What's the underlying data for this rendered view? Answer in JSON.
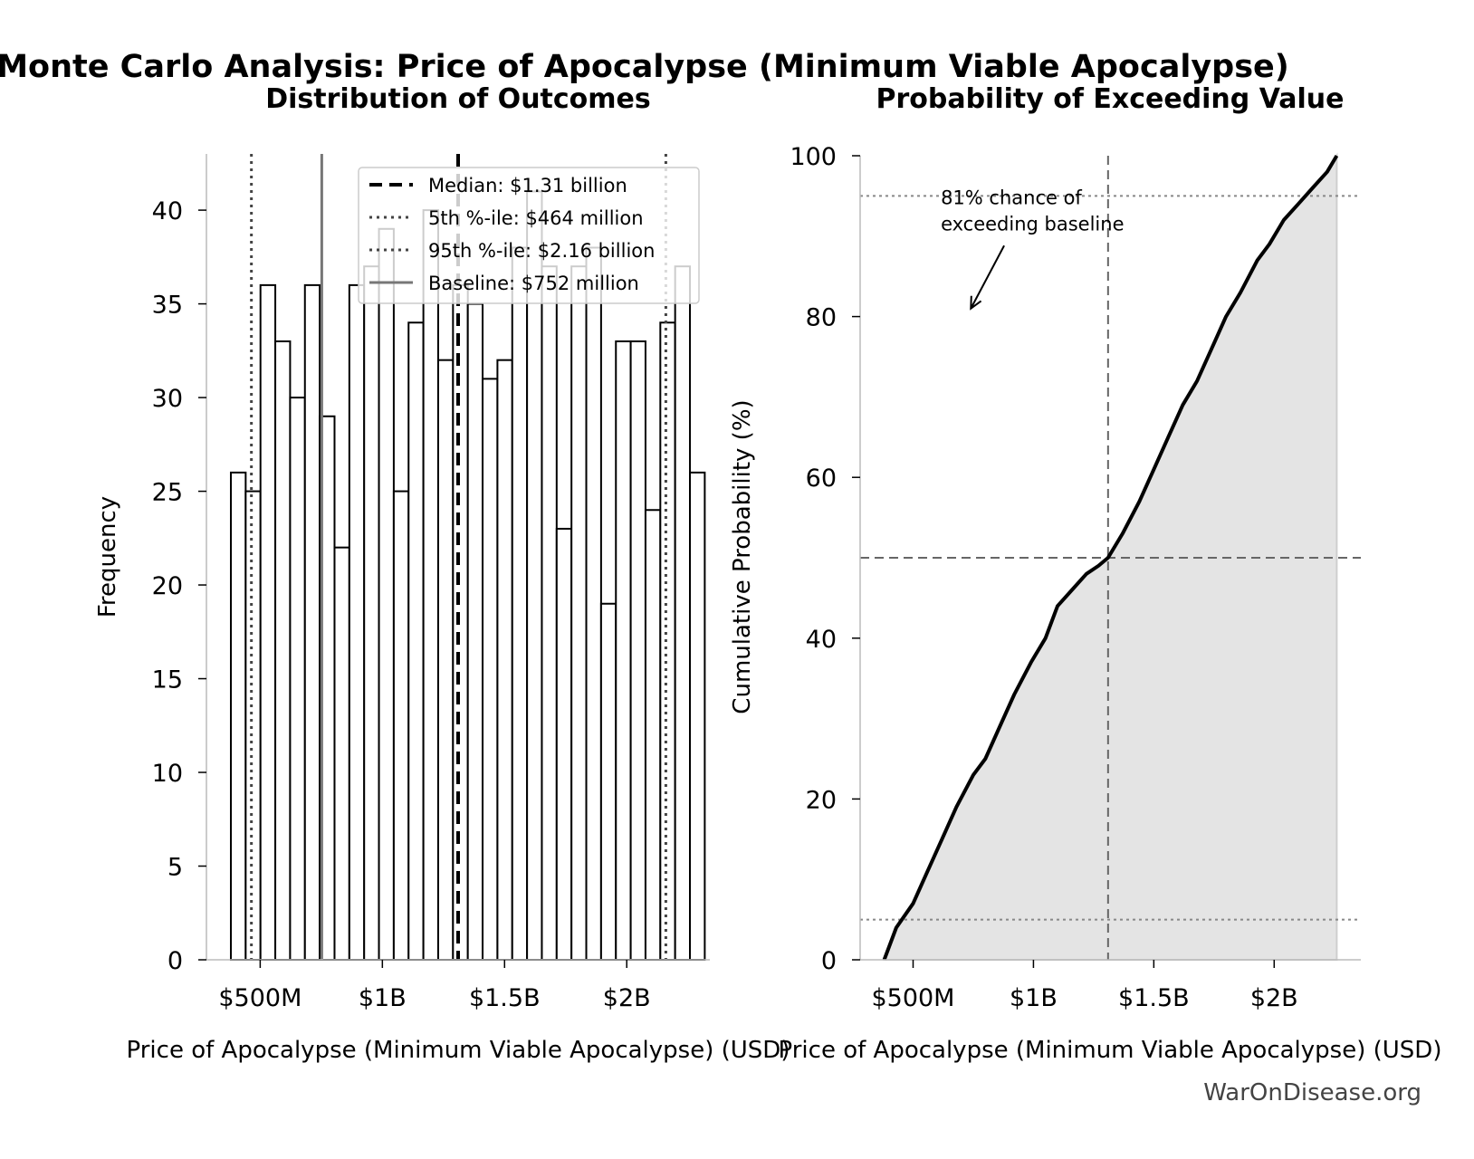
{
  "figure": {
    "suptitle": "Monte Carlo Analysis: Price of Apocalypse (Minimum Viable Apocalypse)",
    "watermark": "WarOnDisease.org"
  },
  "chart_data": [
    {
      "type": "bar",
      "title": "Distribution of Outcomes",
      "xlabel": "Price of Apocalypse (Minimum Viable Apocalypse) (USD)",
      "ylabel": "Frequency",
      "ylim": [
        0,
        43
      ],
      "yticks": [
        0,
        5,
        10,
        15,
        20,
        25,
        30,
        35,
        40
      ],
      "xlim_millions": [
        280,
        2340
      ],
      "xticks_millions": [
        500,
        1000,
        1500,
        2000
      ],
      "xtick_labels": [
        "$500M",
        "$1B",
        "$1.5B",
        "$2B"
      ],
      "bin_start_millions": 380,
      "bin_width_millions": 60.6,
      "values": [
        26,
        25,
        36,
        33,
        30,
        36,
        29,
        22,
        36,
        37,
        39,
        25,
        34,
        40,
        32,
        36,
        35,
        31,
        32,
        38,
        41,
        37,
        23,
        37,
        38,
        19,
        33,
        33,
        24,
        34,
        37,
        26
      ],
      "vlines": [
        {
          "name": "Median: $1.31 billion",
          "x_millions": 1310,
          "style": "dashed",
          "color": "#000000"
        },
        {
          "name": "5th %-ile: $464 million",
          "x_millions": 464,
          "style": "dotted",
          "color": "#444444"
        },
        {
          "name": "95th %-ile: $2.16 billion",
          "x_millions": 2160,
          "style": "dotted",
          "color": "#444444"
        },
        {
          "name": "Baseline: $752 million",
          "x_millions": 752,
          "style": "solid",
          "color": "#777777"
        }
      ],
      "legend_position": "top-right"
    },
    {
      "type": "area",
      "title": "Probability of Exceeding Value",
      "xlabel": "Price of Apocalypse (Minimum Viable Apocalypse) (USD)",
      "ylabel": "Cumulative Probability (%)",
      "ylim": [
        0,
        100
      ],
      "yticks": [
        0,
        20,
        40,
        60,
        80,
        100
      ],
      "xlim_millions": [
        280,
        2360
      ],
      "xticks_millions": [
        500,
        1000,
        1500,
        2000
      ],
      "xtick_labels": [
        "$500M",
        "$1B",
        "$1.5B",
        "$2B"
      ],
      "x_millions": [
        380,
        430,
        500,
        560,
        620,
        680,
        750,
        800,
        860,
        920,
        990,
        1050,
        1100,
        1160,
        1220,
        1270,
        1310,
        1370,
        1440,
        1500,
        1560,
        1620,
        1680,
        1740,
        1800,
        1860,
        1930,
        1980,
        2040,
        2100,
        2160,
        2220,
        2260
      ],
      "y_percent": [
        0,
        4,
        7,
        11,
        15,
        19,
        23,
        25,
        29,
        33,
        37,
        40,
        44,
        46,
        48,
        49,
        50,
        53,
        57,
        61,
        65,
        69,
        72,
        76,
        80,
        83,
        87,
        89,
        92,
        94,
        96,
        98,
        100
      ],
      "median_x_millions": 1310,
      "hlines_percent": [
        95,
        50,
        5
      ],
      "annotation": {
        "line1": "81% chance of",
        "line2": "exceeding baseline",
        "text_x_millions": 615,
        "text_y_percent": 94,
        "arrow_to_x_millions": 740,
        "arrow_to_y_percent": 81
      },
      "fill_color": "#e4e4e4"
    }
  ]
}
